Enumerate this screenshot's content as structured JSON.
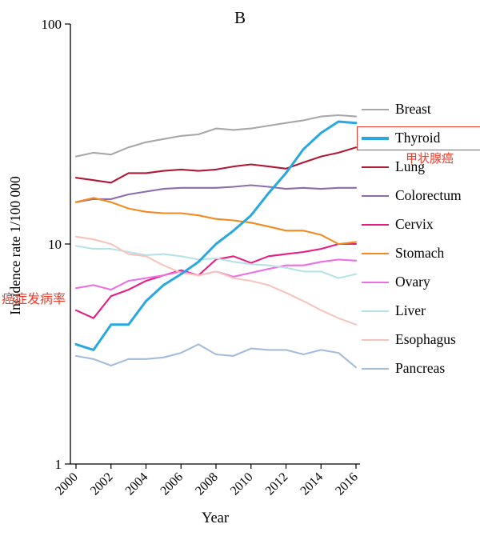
{
  "chart_data": {
    "type": "line",
    "title": "B",
    "xlabel": "Year",
    "ylabel": "Incidence rate 1/100 000",
    "yscale": "log",
    "ylim": [
      1,
      100
    ],
    "y_ticks": [
      1,
      10,
      100
    ],
    "x": [
      2000,
      2001,
      2002,
      2003,
      2004,
      2005,
      2006,
      2007,
      2008,
      2009,
      2010,
      2011,
      2012,
      2013,
      2014,
      2015,
      2016
    ],
    "x_tick_labels": [
      "2000",
      "2002",
      "2004",
      "2006",
      "2008",
      "2010",
      "2012",
      "2014",
      "2016"
    ],
    "legend_position": "right",
    "grid": false,
    "annotation_color": "#f23a28",
    "annotations": [
      {
        "text": "甲状腺癌",
        "target": "Thyroid legend entry (boxed in red)"
      },
      {
        "text": "癌症发病率",
        "target": "y-axis"
      }
    ],
    "series": [
      {
        "name": "Breast",
        "color": "#a7a7a7",
        "values": [
          25,
          26,
          25.5,
          27.5,
          29,
          30,
          31,
          31.5,
          33.5,
          33,
          33.5,
          34.5,
          35.5,
          36.5,
          38,
          38.5,
          38
        ]
      },
      {
        "name": "Thyroid",
        "color": "#29a8e0",
        "highlight": true,
        "values": [
          3.5,
          3.3,
          4.3,
          4.3,
          5.5,
          6.5,
          7.3,
          8.3,
          10,
          11.5,
          13.5,
          17,
          21,
          27,
          32,
          36,
          35.5
        ]
      },
      {
        "name": "Lung",
        "color": "#ae1936",
        "values": [
          20,
          19.5,
          19,
          21,
          21,
          21.5,
          21.8,
          21.5,
          21.8,
          22.5,
          23,
          22.5,
          22,
          23.5,
          25,
          26,
          27.5
        ]
      },
      {
        "name": "Colorectum",
        "color": "#8d6cab",
        "values": [
          15.5,
          16,
          16,
          16.8,
          17.3,
          17.8,
          18,
          18,
          18,
          18.2,
          18.5,
          18.2,
          17.8,
          18,
          17.8,
          18,
          18
        ]
      },
      {
        "name": "Cervix",
        "color": "#e61c80",
        "values": [
          5,
          4.6,
          5.8,
          6.2,
          6.8,
          7.2,
          7.6,
          7.2,
          8.5,
          8.8,
          8.2,
          8.8,
          9,
          9.2,
          9.5,
          10,
          10
        ]
      },
      {
        "name": "Stomach",
        "color": "#f28a1f",
        "values": [
          15.5,
          16.2,
          15.5,
          14.5,
          14,
          13.8,
          13.8,
          13.5,
          13,
          12.8,
          12.5,
          12,
          11.5,
          11.5,
          11,
          10,
          10.2
        ]
      },
      {
        "name": "Ovary",
        "color": "#ec6fe3",
        "values": [
          6.3,
          6.5,
          6.2,
          6.8,
          7,
          7.2,
          7.5,
          7.2,
          7.5,
          7.1,
          7.4,
          7.7,
          8,
          8,
          8.3,
          8.5,
          8.4
        ]
      },
      {
        "name": "Liver",
        "color": "#b7e1e8",
        "values": [
          9.8,
          9.5,
          9.5,
          9.2,
          8.9,
          9,
          8.8,
          8.5,
          8.6,
          8.3,
          8.1,
          8,
          7.8,
          7.5,
          7.5,
          7,
          7.3
        ]
      },
      {
        "name": "Esophagus",
        "color": "#f7c4bd",
        "values": [
          10.8,
          10.5,
          10,
          9,
          8.8,
          8,
          7.4,
          7.2,
          7.5,
          7,
          6.8,
          6.5,
          6,
          5.5,
          5,
          4.6,
          4.3
        ]
      },
      {
        "name": "Pancreas",
        "color": "#a3bcd9",
        "values": [
          3.1,
          3,
          2.8,
          3,
          3,
          3.05,
          3.2,
          3.5,
          3.15,
          3.1,
          3.35,
          3.3,
          3.3,
          3.15,
          3.3,
          3.2,
          2.75
        ]
      }
    ]
  }
}
